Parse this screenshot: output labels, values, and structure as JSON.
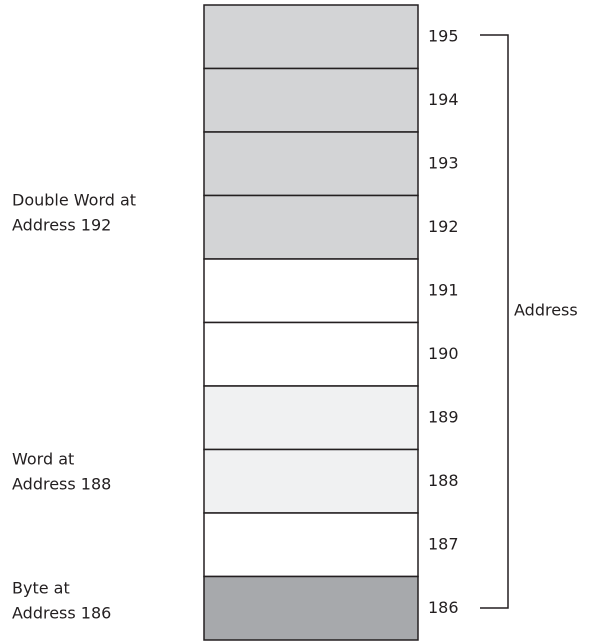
{
  "cells": [
    {
      "address": 195,
      "color": "#d3d4d6"
    },
    {
      "address": 194,
      "color": "#d3d4d6"
    },
    {
      "address": 193,
      "color": "#d3d4d6"
    },
    {
      "address": 192,
      "color": "#d3d4d6"
    },
    {
      "address": 191,
      "color": "#ffffff"
    },
    {
      "address": 190,
      "color": "#ffffff"
    },
    {
      "address": 189,
      "color": "#f0f1f2"
    },
    {
      "address": 188,
      "color": "#f0f1f2"
    },
    {
      "address": 187,
      "color": "#ffffff"
    },
    {
      "address": 186,
      "color": "#a7a9ac"
    }
  ],
  "annotations": [
    {
      "lines": [
        "Double Word at",
        "Address 192"
      ]
    },
    {
      "lines": [
        "Word at",
        "Address 188"
      ]
    },
    {
      "lines": [
        "Byte at",
        "Address 186"
      ]
    }
  ],
  "axis_label": "Address"
}
